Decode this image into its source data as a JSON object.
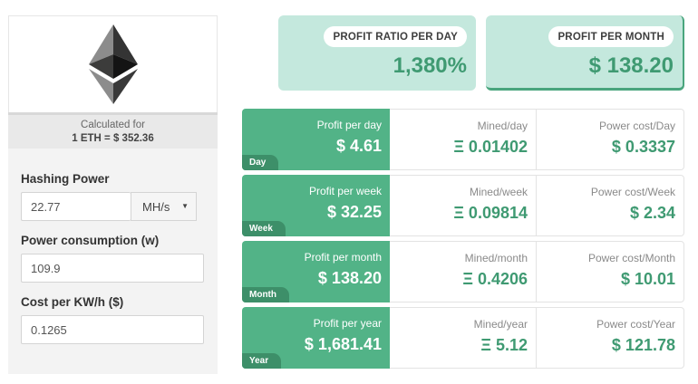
{
  "sidebar": {
    "logo_icon": "ethereum-logo-icon",
    "calc_caption": "Calculated for",
    "rate": "1 ETH = $ 352.36",
    "hashing_label": "Hashing Power",
    "hashing_value": "22.77",
    "hashing_unit": "MH/s",
    "power_label": "Power consumption (w)",
    "power_value": "109.9",
    "cost_label": "Cost per KW/h ($)",
    "cost_value": "0.1265"
  },
  "cards": {
    "ratio_label": "PROFIT RATIO PER DAY",
    "ratio_value": "1,380%",
    "month_label": "PROFIT PER MONTH",
    "month_value": "$ 138.20"
  },
  "rows": [
    {
      "tag": "Day",
      "profit_label": "Profit per day",
      "profit": "$ 4.61",
      "mined_label": "Mined/day",
      "mined": "Ξ 0.01402",
      "power_label": "Power cost/Day",
      "power": "$ 0.3337"
    },
    {
      "tag": "Week",
      "profit_label": "Profit per week",
      "profit": "$ 32.25",
      "mined_label": "Mined/week",
      "mined": "Ξ 0.09814",
      "power_label": "Power cost/Week",
      "power": "$ 2.34"
    },
    {
      "tag": "Month",
      "profit_label": "Profit per month",
      "profit": "$ 138.20",
      "mined_label": "Mined/month",
      "mined": "Ξ 0.4206",
      "power_label": "Power cost/Month",
      "power": "$ 10.01"
    },
    {
      "tag": "Year",
      "profit_label": "Profit per year",
      "profit": "$ 1,681.41",
      "mined_label": "Mined/year",
      "mined": "Ξ 5.12",
      "power_label": "Power cost/Year",
      "power": "$ 121.78"
    }
  ],
  "colors": {
    "accent_green": "#52b387",
    "dark_green": "#3d8f69",
    "card_bg": "#c4e8dd",
    "value_green": "#3f9a72"
  }
}
